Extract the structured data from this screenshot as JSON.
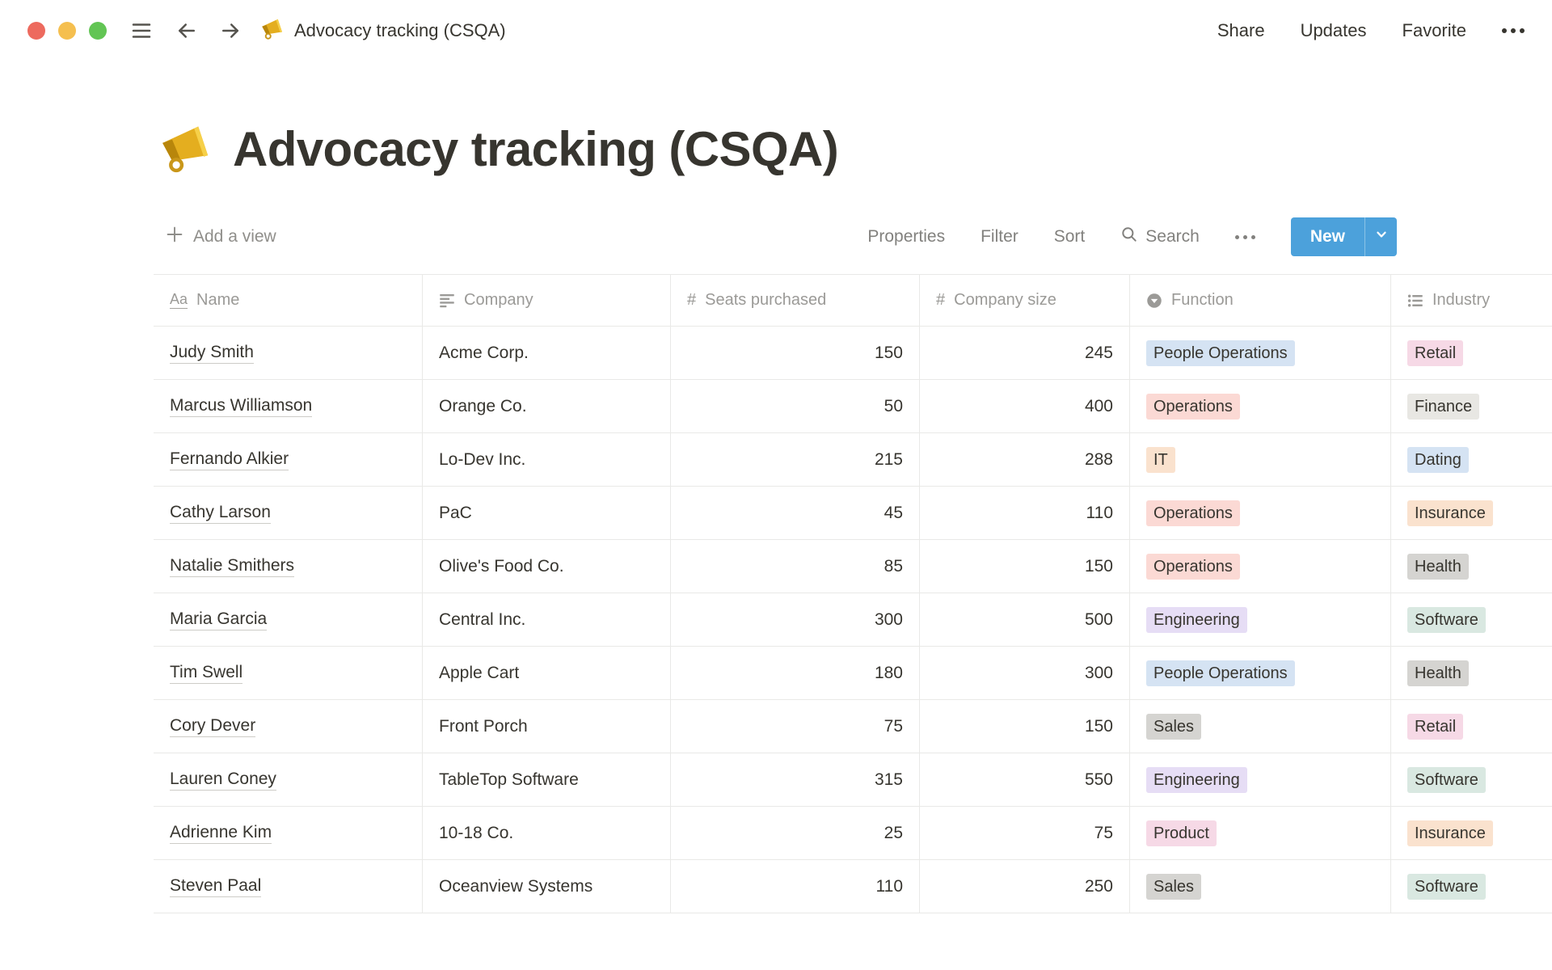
{
  "window": {
    "doc_title": "Advocacy tracking (CSQA)",
    "actions": {
      "share": "Share",
      "updates": "Updates",
      "favorite": "Favorite"
    }
  },
  "page": {
    "title": "Advocacy tracking (CSQA)",
    "emoji": "megaphone"
  },
  "toolbar": {
    "add_view": "Add a view",
    "properties": "Properties",
    "filter": "Filter",
    "sort": "Sort",
    "search": "Search",
    "new_label": "New"
  },
  "icons": {
    "window": [
      "close-traffic-light",
      "minimize-traffic-light",
      "zoom-traffic-light",
      "hamburger-menu",
      "back-arrow",
      "forward-arrow",
      "megaphone",
      "more-dots"
    ],
    "toolbar": [
      "plus",
      "search-magnifier",
      "more-dots",
      "chevron-down"
    ],
    "column_types": {
      "title": "Aa",
      "text": "text-lines",
      "number": "#",
      "select": "circle-caret",
      "multi_select": "bulleted-list"
    }
  },
  "tag_colors": {
    "blue": "#D5E3F3",
    "red": "#FBD9D4",
    "pink": "#F6D9E6",
    "gray": "#D5D4D1",
    "lightgray": "#E8E7E3",
    "orange": "#FAE2CE",
    "purple": "#E6DDF5",
    "green": "#D9E8E1"
  },
  "accent": {
    "new_button": "#4CA1DB"
  },
  "table": {
    "columns": [
      {
        "label": "Name",
        "type": "title"
      },
      {
        "label": "Company",
        "type": "text"
      },
      {
        "label": "Seats purchased",
        "type": "number"
      },
      {
        "label": "Company size",
        "type": "number"
      },
      {
        "label": "Function",
        "type": "select"
      },
      {
        "label": "Industry",
        "type": "multi_select"
      }
    ],
    "rows": [
      {
        "name": "Judy Smith",
        "company": "Acme Corp.",
        "seats": "150",
        "company_size": "245",
        "function": {
          "label": "People Operations",
          "color": "blue"
        },
        "industry": {
          "label": "Retail",
          "color": "pink"
        }
      },
      {
        "name": "Marcus Williamson",
        "company": "Orange Co.",
        "seats": "50",
        "company_size": "400",
        "function": {
          "label": "Operations",
          "color": "red"
        },
        "industry": {
          "label": "Finance",
          "color": "lightgray"
        }
      },
      {
        "name": "Fernando Alkier",
        "company": "Lo-Dev Inc.",
        "seats": "215",
        "company_size": "288",
        "function": {
          "label": "IT",
          "color": "orange"
        },
        "industry": {
          "label": "Dating",
          "color": "blue"
        }
      },
      {
        "name": "Cathy Larson",
        "company": "PaC",
        "seats": "45",
        "company_size": "110",
        "function": {
          "label": "Operations",
          "color": "red"
        },
        "industry": {
          "label": "Insurance",
          "color": "orange"
        }
      },
      {
        "name": "Natalie Smithers",
        "company": "Olive's Food Co.",
        "seats": "85",
        "company_size": "150",
        "function": {
          "label": "Operations",
          "color": "red"
        },
        "industry": {
          "label": "Health",
          "color": "gray"
        }
      },
      {
        "name": "Maria Garcia",
        "company": "Central Inc.",
        "seats": "300",
        "company_size": "500",
        "function": {
          "label": "Engineering",
          "color": "purple"
        },
        "industry": {
          "label": "Software",
          "color": "green"
        }
      },
      {
        "name": "Tim Swell",
        "company": "Apple Cart",
        "seats": "180",
        "company_size": "300",
        "function": {
          "label": "People Operations",
          "color": "blue"
        },
        "industry": {
          "label": "Health",
          "color": "gray"
        }
      },
      {
        "name": "Cory Dever",
        "company": "Front Porch",
        "seats": "75",
        "company_size": "150",
        "function": {
          "label": "Sales",
          "color": "gray"
        },
        "industry": {
          "label": "Retail",
          "color": "pink"
        }
      },
      {
        "name": "Lauren Coney",
        "company": "TableTop Software",
        "seats": "315",
        "company_size": "550",
        "function": {
          "label": "Engineering",
          "color": "purple"
        },
        "industry": {
          "label": "Software",
          "color": "green"
        }
      },
      {
        "name": "Adrienne Kim",
        "company": "10-18 Co.",
        "seats": "25",
        "company_size": "75",
        "function": {
          "label": "Product",
          "color": "pink"
        },
        "industry": {
          "label": "Insurance",
          "color": "orange"
        }
      },
      {
        "name": "Steven Paal",
        "company": "Oceanview Systems",
        "seats": "110",
        "company_size": "250",
        "function": {
          "label": "Sales",
          "color": "gray"
        },
        "industry": {
          "label": "Software",
          "color": "green"
        }
      }
    ]
  }
}
